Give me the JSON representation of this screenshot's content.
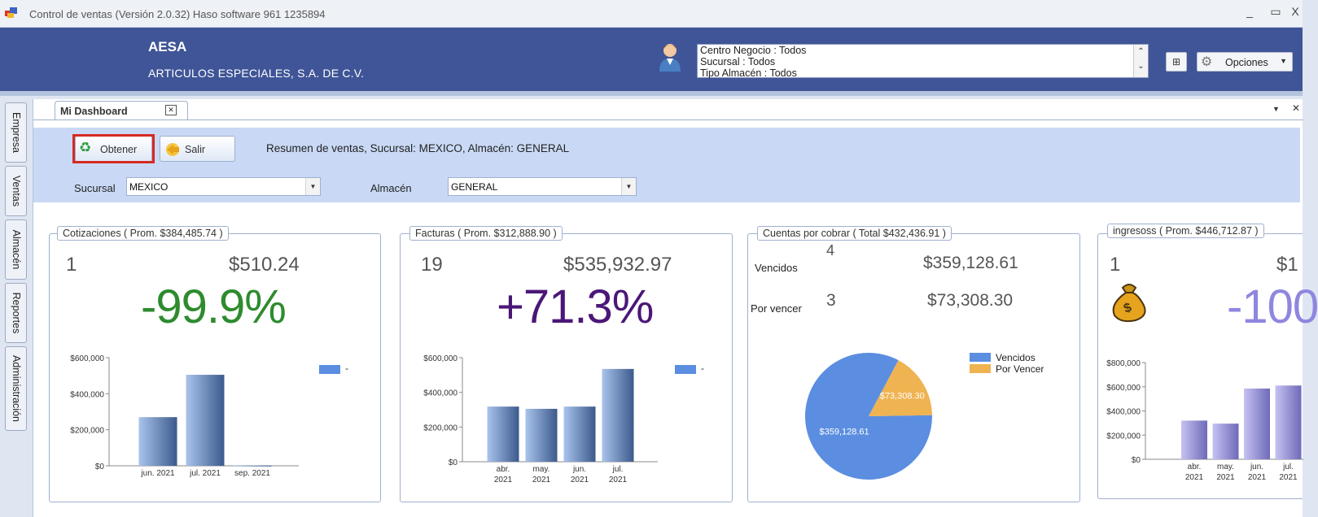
{
  "window": {
    "title": "Control de ventas  (Versión 2.0.32)  Haso software  961 1235894",
    "minimize": "_",
    "maximize": "▭",
    "close": "X"
  },
  "header": {
    "company_short": "AESA",
    "company_name": "ARTICULOS ESPECIALES, S.A. DE C.V.",
    "context_lines": [
      "Centro Negocio : Todos",
      "Sucursal : Todos",
      "Tipo Almacén : Todos"
    ],
    "grid_glyph": "⊞",
    "options_label": "Opciones"
  },
  "sidebar": {
    "tabs": [
      {
        "label": "Empresa"
      },
      {
        "label": "Ventas"
      },
      {
        "label": "Almacén"
      },
      {
        "label": "Reportes"
      },
      {
        "label": "Administración"
      }
    ]
  },
  "doc_tab": {
    "label": "Mi Dashboard",
    "close": "✕"
  },
  "toolbar": {
    "obtener_label": "Obtener",
    "salir_label": "Salir",
    "summary": "Resumen de ventas, Sucursal: MEXICO, Almacén: GENERAL",
    "sucursal_label": "Sucursal",
    "sucursal_value": "MEXICO",
    "almacen_label": "Almacén",
    "almacen_value": "GENERAL"
  },
  "cards": {
    "cotizaciones": {
      "caption": "Cotizaciones  ( Prom. $384,485.74 )",
      "count": "1",
      "amount": "$510.24",
      "pct": "-99.9%",
      "pct_color": "#2e8b2e",
      "legend": "-"
    },
    "facturas": {
      "caption": "Facturas  ( Prom. $312,888.90 )",
      "count": "19",
      "amount": "$535,932.97",
      "pct": "+71.3%",
      "pct_color": "#4b1777",
      "legend": "-"
    },
    "cuentas": {
      "caption": "Cuentas por cobrar ( Total $432,436.91 )",
      "vencidos_label": "Vencidos",
      "vencidos_count": "4",
      "vencidos_amount": "$359,128.61",
      "porvencer_label": "Por vencer",
      "porvencer_count": "3",
      "porvencer_amount": "$73,308.30"
    },
    "ingresos": {
      "caption": "ingresoss  ( Prom. $446,712.87 )",
      "count": "1",
      "amount": "$1",
      "pct": "-100",
      "pct_color": "#8f86e0",
      "icon": "money-bag-icon"
    }
  },
  "chart_data": [
    {
      "type": "bar",
      "categories": [
        "jun. 2021",
        "jul. 2021",
        "sep. 2021"
      ],
      "series": [
        {
          "name": "-",
          "values": [
            270000,
            505000,
            1000
          ]
        }
      ],
      "ylim": [
        0,
        600000
      ],
      "yticks": [
        "$0",
        "$200,000",
        "$400,000",
        "$600,000"
      ],
      "ytick_values": [
        0,
        200000,
        400000,
        600000
      ],
      "legend": "top-right",
      "colors": {
        "bar_light": "#a9c3ec",
        "bar_dark": "#3b5a8c"
      }
    },
    {
      "type": "bar",
      "categories": [
        "abr. 2021",
        "may. 2021",
        "jun. 2021",
        "jul. 2021"
      ],
      "series": [
        {
          "name": "-",
          "values": [
            318000,
            305000,
            318000,
            535000
          ]
        }
      ],
      "ylim": [
        0,
        600000
      ],
      "yticks": [
        "$0",
        "$200,000",
        "$400,000",
        "$600,000"
      ],
      "ytick_values": [
        0,
        200000,
        400000,
        600000
      ],
      "legend": "top-right",
      "colors": {
        "bar_light": "#a9c3ec",
        "bar_dark": "#3b5a8c"
      }
    },
    {
      "type": "pie",
      "categories": [
        "Vencidos",
        "Por Vencer"
      ],
      "values": [
        359128.61,
        73308.3
      ],
      "value_labels": [
        "$359,128.61",
        "$73,308.30"
      ],
      "legend": "right",
      "colors": [
        "#5b8ee0",
        "#efb351"
      ]
    },
    {
      "type": "bar",
      "categories": [
        "abr. 2021",
        "may. 2021",
        "jun. 2021",
        "jul. 2021"
      ],
      "series": [
        {
          "values": [
            320000,
            295000,
            585000,
            610000
          ]
        }
      ],
      "ylim": [
        0,
        800000
      ],
      "yticks": [
        "$0",
        "$200,000",
        "$400,000",
        "$600,000",
        "$800,000"
      ],
      "ytick_values": [
        0,
        200000,
        400000,
        600000,
        800000
      ],
      "colors": {
        "bar_light": "#c6c2f2",
        "bar_dark": "#6e6ab8"
      }
    }
  ]
}
